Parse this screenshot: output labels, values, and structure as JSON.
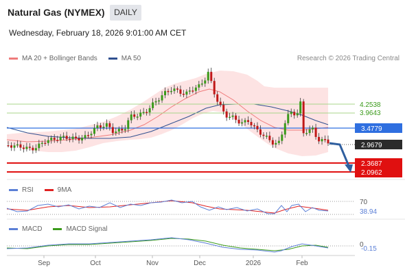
{
  "header": {
    "title": "Natural Gas (NYMEX)",
    "timeframe": "DAILY",
    "datetime": "Wednesday, February 18, 2026 9:01:00 AM CET"
  },
  "legends": {
    "main": [
      {
        "label": "MA 20 + Bollinger Bands",
        "color": "#ef7b7b"
      },
      {
        "label": "MA 50",
        "color": "#2f4f8f"
      }
    ],
    "rsi": [
      {
        "label": "RSI",
        "color": "#5b7fd6"
      },
      {
        "label": "9MA",
        "color": "#e02020"
      }
    ],
    "macd": [
      {
        "label": "MACD",
        "color": "#5b7fd6"
      },
      {
        "label": "MACD Signal",
        "color": "#3a9a1a"
      }
    ]
  },
  "credit": "Research © 2026 Trading Central",
  "levels": [
    {
      "value": "4.2538",
      "color": "#3a9a1a",
      "style": "text"
    },
    {
      "value": "3.9643",
      "color": "#3a9a1a",
      "style": "text"
    },
    {
      "value": "3.4779",
      "color": "#2f6fe0",
      "style": "box"
    },
    {
      "value": "2.9679",
      "color": "#2b2b2b",
      "style": "box"
    },
    {
      "value": "2.3687",
      "color": "#e01010",
      "style": "box"
    },
    {
      "value": "2.0962",
      "color": "#e01010",
      "style": "box"
    }
  ],
  "rsi_panel": {
    "level": "70",
    "current": "38.94"
  },
  "macd_panel": {
    "level": "0",
    "current": "-0.15"
  },
  "x_axis": [
    "Sep",
    "Oct",
    "Nov",
    "Dec",
    "2026",
    "Feb"
  ],
  "colors": {
    "candle_up": "#3a9a1a",
    "candle_down": "#c01818",
    "bollinger_fill": "#fde3e3",
    "ma20": "#ef7b7b",
    "ma50": "#2f4f8f",
    "forecast_arrow": "#2f5f9f"
  }
}
